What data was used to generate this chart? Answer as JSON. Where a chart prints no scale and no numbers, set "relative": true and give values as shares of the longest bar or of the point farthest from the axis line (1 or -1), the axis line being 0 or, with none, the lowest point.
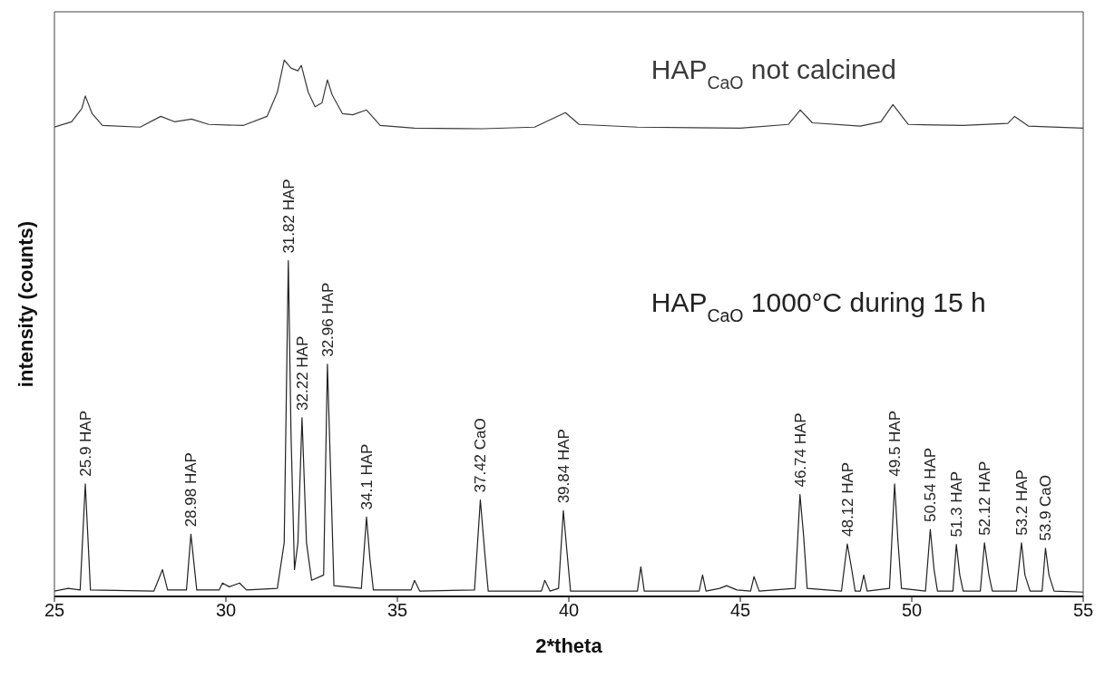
{
  "chart_data": {
    "type": "line",
    "xlabel": "2*theta",
    "ylabel": "intensity (counts)",
    "relative": true,
    "xlim": [
      25,
      55
    ],
    "xticks": [
      25,
      30,
      35,
      40,
      45,
      50,
      55
    ],
    "legend": false,
    "marker": "none",
    "line_style": "solid",
    "series": [
      {
        "name": "HAP$_{CaO}$ not calcined",
        "color": "#3a3a3a",
        "x": [
          25.0,
          25.5,
          25.8,
          25.9,
          26.1,
          26.4,
          27.5,
          28.1,
          28.5,
          29.0,
          29.5,
          30.5,
          31.2,
          31.5,
          31.7,
          31.9,
          32.1,
          32.2,
          32.4,
          32.6,
          32.8,
          32.96,
          33.1,
          33.4,
          33.7,
          34.1,
          34.5,
          35.5,
          37.5,
          39.0,
          39.9,
          40.3,
          42,
          45,
          46.4,
          46.75,
          47.1,
          48.5,
          49.1,
          49.45,
          49.9,
          51.5,
          52.8,
          53.0,
          53.4,
          55
        ],
        "values": [
          0.875,
          0.885,
          0.91,
          0.933,
          0.9,
          0.878,
          0.875,
          0.895,
          0.885,
          0.89,
          0.88,
          0.878,
          0.895,
          0.94,
          1.0,
          0.985,
          0.98,
          0.99,
          0.94,
          0.913,
          0.92,
          0.963,
          0.935,
          0.9,
          0.898,
          0.907,
          0.878,
          0.873,
          0.872,
          0.875,
          0.902,
          0.88,
          0.875,
          0.873,
          0.88,
          0.907,
          0.883,
          0.877,
          0.885,
          0.917,
          0.88,
          0.878,
          0.882,
          0.895,
          0.877,
          0.873
        ]
      },
      {
        "name": "HAP$_{CaO}$ 1000°C during 15 h",
        "color": "#222222",
        "x": [
          25.0,
          25.4,
          25.75,
          25.9,
          26.05,
          27.9,
          28.15,
          28.3,
          28.85,
          28.98,
          29.15,
          29.8,
          29.9,
          30.1,
          30.4,
          30.6,
          31.5,
          31.7,
          31.82,
          31.9,
          32.0,
          32.1,
          32.22,
          32.35,
          32.5,
          32.85,
          32.96,
          33.05,
          33.15,
          33.95,
          34.1,
          34.2,
          34.3,
          35.4,
          35.5,
          35.65,
          37.25,
          37.42,
          37.55,
          37.65,
          39.2,
          39.3,
          39.45,
          39.7,
          39.84,
          39.95,
          40.05,
          42.0,
          42.1,
          42.2,
          43.8,
          43.9,
          44.0,
          44.4,
          44.6,
          44.9,
          45.3,
          45.4,
          45.55,
          46.6,
          46.74,
          46.85,
          46.95,
          47.95,
          48.12,
          48.25,
          48.35,
          48.5,
          48.6,
          48.7,
          49.35,
          49.5,
          49.6,
          49.7,
          50.4,
          50.54,
          50.65,
          50.75,
          51.2,
          51.3,
          51.4,
          51.5,
          52.0,
          52.12,
          52.25,
          52.35,
          53.05,
          53.2,
          53.3,
          53.45,
          53.8,
          53.9,
          54.0,
          54.15,
          55
        ],
        "values": [
          0.01,
          0.015,
          0.012,
          0.21,
          0.012,
          0.01,
          0.05,
          0.012,
          0.012,
          0.116,
          0.012,
          0.012,
          0.025,
          0.018,
          0.025,
          0.012,
          0.015,
          0.1,
          0.626,
          0.3,
          0.05,
          0.1,
          0.333,
          0.1,
          0.03,
          0.04,
          0.433,
          0.24,
          0.02,
          0.015,
          0.148,
          0.07,
          0.012,
          0.012,
          0.03,
          0.01,
          0.012,
          0.18,
          0.08,
          0.01,
          0.01,
          0.03,
          0.01,
          0.015,
          0.16,
          0.08,
          0.01,
          0.01,
          0.055,
          0.01,
          0.01,
          0.04,
          0.01,
          0.015,
          0.02,
          0.012,
          0.01,
          0.037,
          0.01,
          0.015,
          0.19,
          0.11,
          0.015,
          0.01,
          0.098,
          0.05,
          0.01,
          0.01,
          0.04,
          0.01,
          0.015,
          0.21,
          0.1,
          0.015,
          0.01,
          0.125,
          0.05,
          0.01,
          0.01,
          0.097,
          0.04,
          0.01,
          0.01,
          0.1,
          0.04,
          0.01,
          0.01,
          0.1,
          0.04,
          0.01,
          0.01,
          0.09,
          0.04,
          0.01,
          0.008
        ]
      }
    ],
    "annotations": [
      {
        "text": "25.9 HAP",
        "x": 25.9,
        "y": 0.21
      },
      {
        "text": "28.98 HAP",
        "x": 28.98,
        "y": 0.116
      },
      {
        "text": "31.82 HAP",
        "x": 31.82,
        "y": 0.626
      },
      {
        "text": "32.22 HAP",
        "x": 32.22,
        "y": 0.333
      },
      {
        "text": "32.96 HAP",
        "x": 32.96,
        "y": 0.433
      },
      {
        "text": "34.1 HAP",
        "x": 34.1,
        "y": 0.148
      },
      {
        "text": "37.42 CaO",
        "x": 37.42,
        "y": 0.18
      },
      {
        "text": "39.84 HAP",
        "x": 39.84,
        "y": 0.16
      },
      {
        "text": "46.74 HAP",
        "x": 46.74,
        "y": 0.19
      },
      {
        "text": "48.12 HAP",
        "x": 48.12,
        "y": 0.098
      },
      {
        "text": "49.5 HAP",
        "x": 49.5,
        "y": 0.21
      },
      {
        "text": "50.54 HAP",
        "x": 50.54,
        "y": 0.125
      },
      {
        "text": "51.3 HAP",
        "x": 51.3,
        "y": 0.097
      },
      {
        "text": "52.12 HAP",
        "x": 52.12,
        "y": 0.1
      },
      {
        "text": "53.2 HAP",
        "x": 53.2,
        "y": 0.1
      },
      {
        "text": "53.9 CaO",
        "x": 53.9,
        "y": 0.09
      }
    ]
  }
}
